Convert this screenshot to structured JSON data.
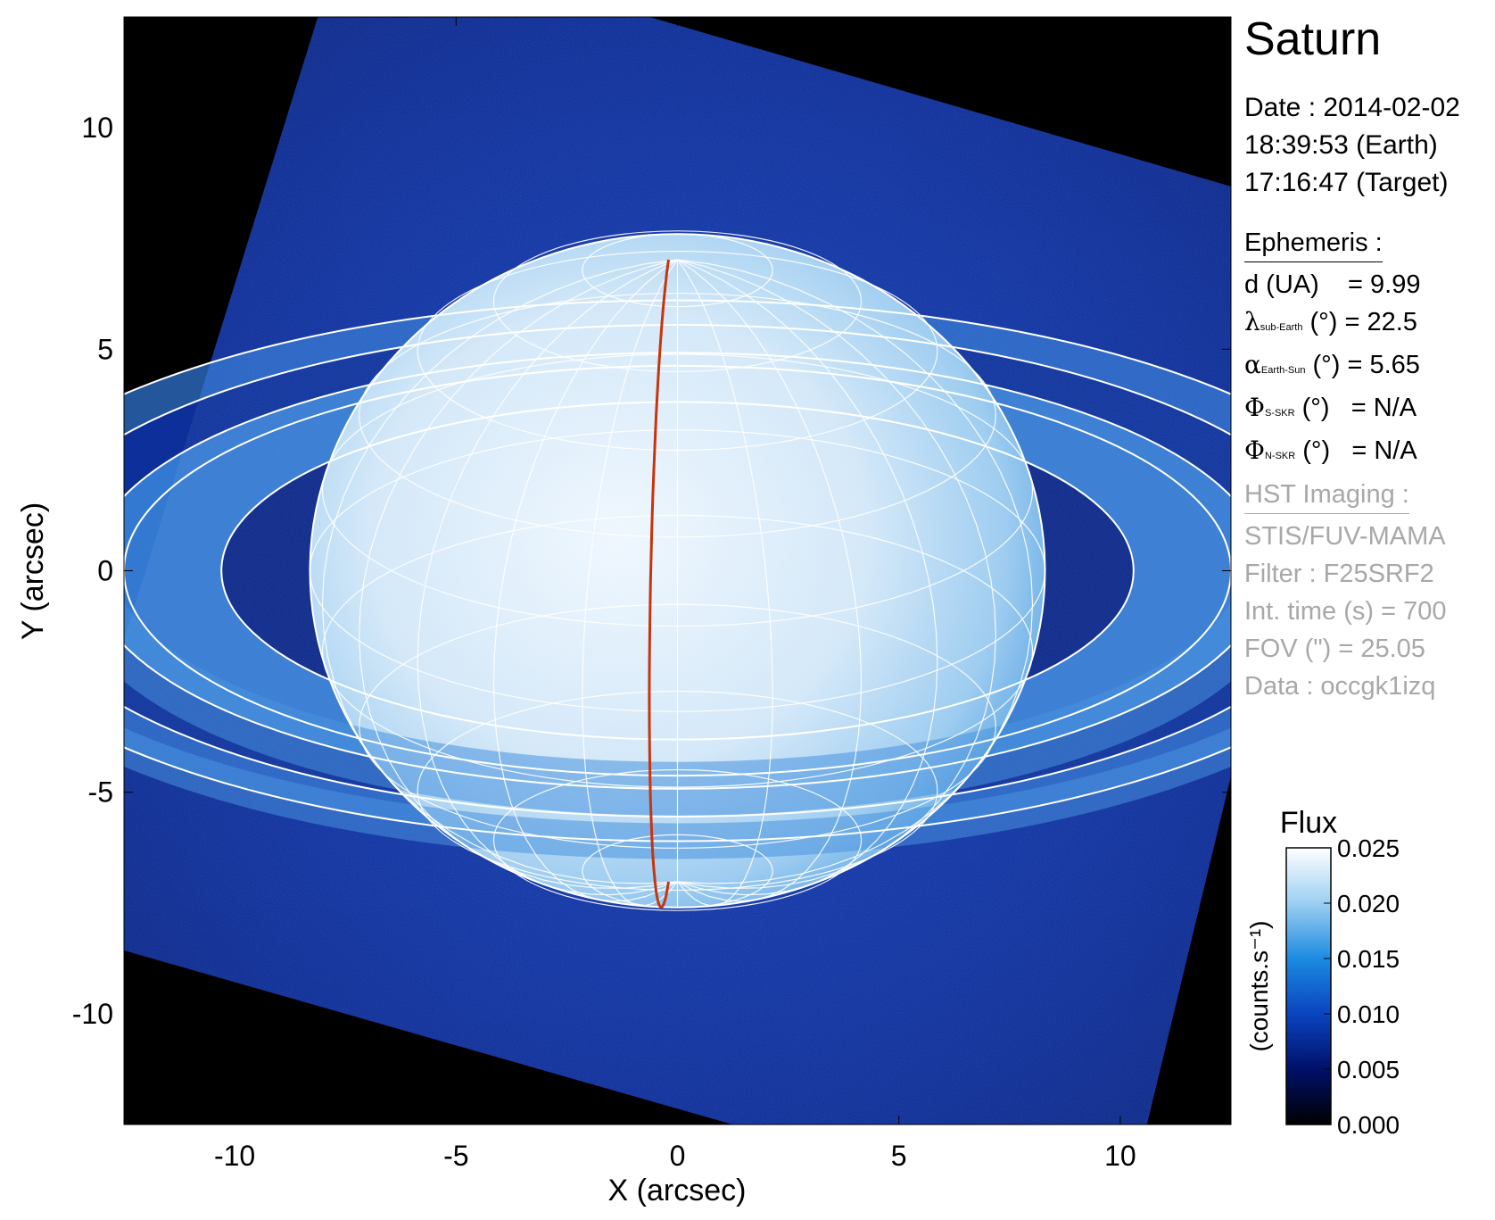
{
  "chart_data": {
    "type": "heatmap",
    "title": "Saturn",
    "xlabel": "X (arcsec)",
    "ylabel": "Y (arcsec)",
    "xlim": [
      -12.5,
      12.5
    ],
    "ylim": [
      -12.5,
      12.5
    ],
    "x_ticks": [
      -10,
      -5,
      0,
      5,
      10
    ],
    "y_ticks": [
      -10,
      -5,
      0,
      5,
      10
    ],
    "x_tick_labels": [
      "-10",
      "-5",
      "0",
      "5",
      "10"
    ],
    "y_tick_labels": [
      "-10",
      "-5",
      "0",
      "5",
      "10"
    ],
    "colorbar": {
      "title": "Flux",
      "label": "(counts.s⁻¹)",
      "ticks": [
        0.0,
        0.005,
        0.01,
        0.015,
        0.02,
        0.025
      ],
      "tick_labels": [
        "0.000",
        "0.005",
        "0.010",
        "0.015",
        "0.020",
        "0.025"
      ],
      "range": [
        0.0,
        0.025
      ],
      "colormap": [
        "#000000",
        "#00106a",
        "#0a44c0",
        "#1c8be0",
        "#9ccff2",
        "#ffffff"
      ]
    },
    "planet": {
      "center": [
        0.0,
        0.0
      ],
      "equatorial_radius": 8.3,
      "polar_radius": 7.6,
      "grid": "lat-lon"
    },
    "rings": {
      "semi_major_axes": [
        10.3,
        12.5,
        13.3,
        15.0,
        16.5
      ],
      "axis_ratio": 0.37
    },
    "meridian_color": "#c8340c",
    "grid_color": "#ffffff",
    "colors": {
      "background": "#000000",
      "sky": "#0a2a9e",
      "planet": "#dfeefa"
    }
  },
  "info": {
    "target": "Saturn",
    "date": [
      "Date : 2014-02-02",
      "18:39:53 (Earth)",
      "17:16:47 (Target)"
    ],
    "ephemeris_title": "Ephemeris :",
    "ephemeris": [
      {
        "symbol": "",
        "sub": "",
        "label": "d (UA)    = 9.99"
      },
      {
        "symbol": "λ",
        "sub": "sub-Earth",
        "label": " (°) = 22.5"
      },
      {
        "symbol": "α",
        "sub": "Earth-Sun",
        "label": " (°) = 5.65"
      },
      {
        "symbol": "Φ",
        "sub": "S-SKR",
        "label": " (°)   = N/A"
      },
      {
        "symbol": "Φ",
        "sub": "N-SKR",
        "label": " (°)   = N/A"
      }
    ],
    "hst_title": "HST Imaging :",
    "hst": [
      "STIS/FUV-MAMA",
      "Filter : F25SRF2",
      "Int. time (s) = 700",
      "FOV (\") = 25.05",
      "Data : occgk1izq"
    ]
  }
}
